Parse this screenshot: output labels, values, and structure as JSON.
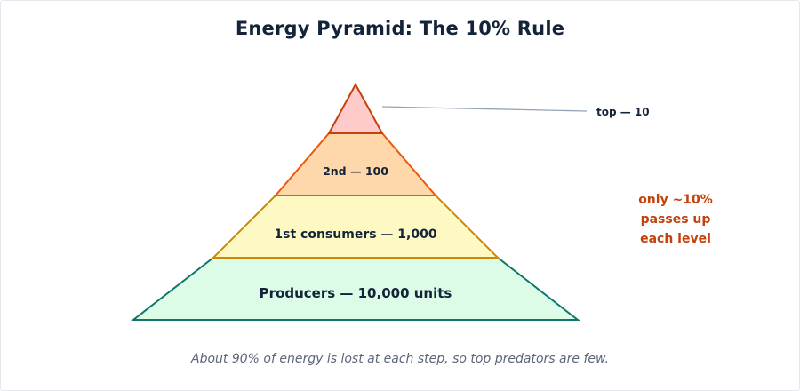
{
  "title": "Energy Pyramid: The 10% Rule",
  "levels": [
    {
      "label": "Producers — 10,000 units",
      "fill": "#dcfce7",
      "stroke": "#0f766e"
    },
    {
      "label": "1st consumers — 1,000",
      "fill": "#fef9c3",
      "stroke": "#ca8a04"
    },
    {
      "label": "2nd — 100",
      "fill": "#fed7aa",
      "stroke": "#ea580c"
    },
    {
      "label": "top — 10",
      "fill": "#fecaca",
      "stroke": "#c2410c"
    }
  ],
  "note": {
    "lines": [
      "only ~10%",
      "passes up",
      "each level"
    ],
    "color": "#c2410c"
  },
  "caption": "About 90% of energy is lost at each step, so top predators are few."
}
